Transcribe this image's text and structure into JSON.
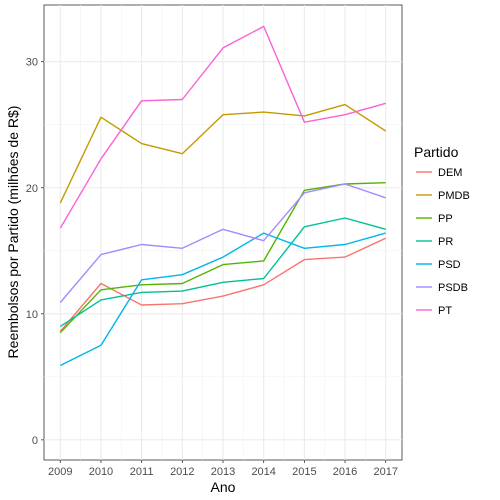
{
  "chart_data": {
    "type": "line",
    "title": "",
    "xlabel": "Ano",
    "ylabel": "Reembolsos por Partido (milhões de R$)",
    "legend_title": "Partido",
    "legend_position": "right",
    "grid": true,
    "x": [
      2009,
      2010,
      2011,
      2012,
      2013,
      2014,
      2015,
      2016,
      2017
    ],
    "xlim": [
      2008.6,
      2017.4
    ],
    "ylim": [
      -1.6,
      34.5
    ],
    "y_ticks": [
      0,
      10,
      20,
      30
    ],
    "series": [
      {
        "name": "DEM",
        "color": "#F8766D",
        "values": [
          8.6,
          12.4,
          10.7,
          10.8,
          11.4,
          12.3,
          14.3,
          14.5,
          16.0
        ]
      },
      {
        "name": "PMDB",
        "color": "#C49A00",
        "values": [
          18.8,
          25.6,
          23.5,
          22.7,
          25.8,
          26.0,
          25.7,
          26.6,
          24.5
        ]
      },
      {
        "name": "PP",
        "color": "#53B400",
        "values": [
          8.5,
          11.9,
          12.3,
          12.4,
          13.9,
          14.2,
          19.8,
          20.3,
          20.4
        ]
      },
      {
        "name": "PR",
        "color": "#00C094",
        "values": [
          9.0,
          11.1,
          11.7,
          11.8,
          12.5,
          12.8,
          16.9,
          17.6,
          16.7
        ]
      },
      {
        "name": "PSD",
        "color": "#00B6EB",
        "values": [
          5.9,
          7.5,
          12.7,
          13.1,
          14.5,
          16.4,
          15.2,
          15.5,
          16.4
        ]
      },
      {
        "name": "PSDB",
        "color": "#A58AFF",
        "values": [
          10.9,
          14.7,
          15.5,
          15.2,
          16.7,
          15.8,
          19.6,
          20.3,
          19.2
        ]
      },
      {
        "name": "PT",
        "color": "#FB61D7",
        "values": [
          16.8,
          22.3,
          26.9,
          27.0,
          31.1,
          32.8,
          25.2,
          25.8,
          26.7
        ]
      }
    ]
  }
}
